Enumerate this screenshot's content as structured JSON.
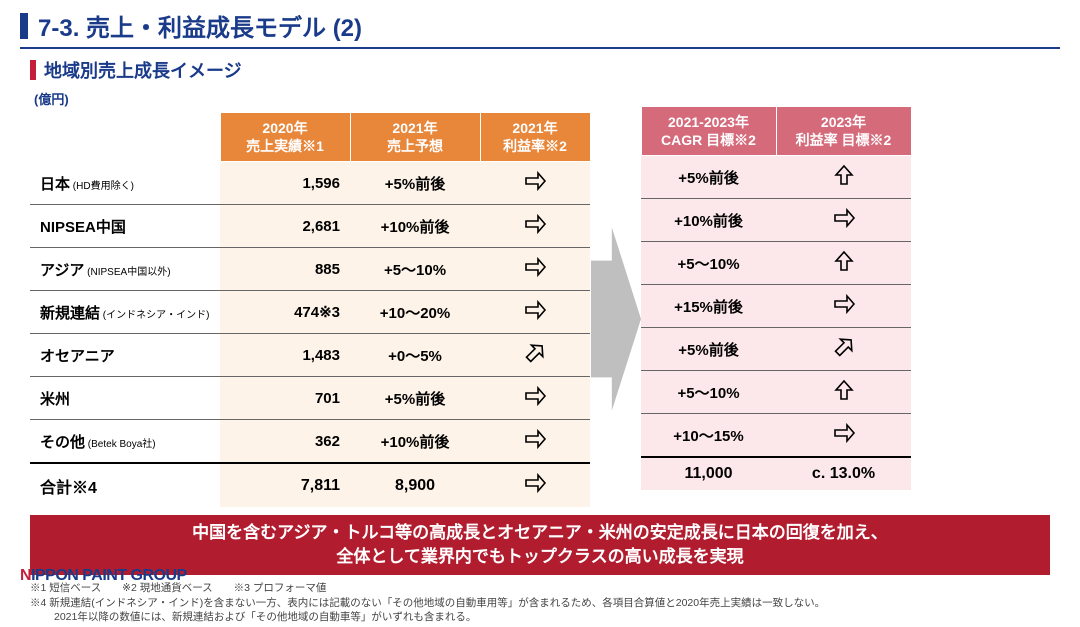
{
  "title": "7-3. 売上・利益成長モデル (2)",
  "subtitle": "地域別売上成長イメージ",
  "unit": "(億円)",
  "colors": {
    "navy": "#1a3a8a",
    "red": "#c41e3a",
    "orange_header": "#e8863a",
    "orange_cell": "#fdf3e8",
    "pink_header": "#d46a7a",
    "pink_cell": "#fce8ea",
    "banner": "#b11d2f",
    "arrow_gray": "#999999"
  },
  "headers_left": {
    "c1_l1": "2020年",
    "c1_l2": "売上実績※1",
    "c2_l1": "2021年",
    "c2_l2": "売上予想",
    "c3_l1": "2021年",
    "c3_l2": "利益率※2"
  },
  "headers_right": {
    "c1_l1": "2021-2023年",
    "c1_l2": "CAGR 目標※2",
    "c2_l1": "2023年",
    "c2_l2": "利益率 目標※2"
  },
  "rows": [
    {
      "label": "日本",
      "sub": "(HD費用除く)",
      "v2020": "1,596",
      "v2021f": "+5%前後",
      "arrow1": "flat",
      "cagr": "+5%前後",
      "arrow2": "up"
    },
    {
      "label": "NIPSEA中国",
      "sub": "",
      "v2020": "2,681",
      "v2021f": "+10%前後",
      "arrow1": "flat",
      "cagr": "+10%前後",
      "arrow2": "flat"
    },
    {
      "label": "アジア",
      "sub": "(NIPSEA中国以外)",
      "v2020": "885",
      "v2021f": "+5～10%",
      "arrow1": "flat",
      "cagr": "+5～10%",
      "arrow2": "up"
    },
    {
      "label": "新規連結",
      "sub": "(インドネシア・インド)",
      "v2020": "474※3",
      "v2021f": "+10～20%",
      "arrow1": "flat",
      "cagr": "+15%前後",
      "arrow2": "flat"
    },
    {
      "label": "オセアニア",
      "sub": "",
      "v2020": "1,483",
      "v2021f": "+0～5%",
      "arrow1": "upright",
      "cagr": "+5%前後",
      "arrow2": "upright"
    },
    {
      "label": "米州",
      "sub": "",
      "v2020": "701",
      "v2021f": "+5%前後",
      "arrow1": "flat",
      "cagr": "+5～10%",
      "arrow2": "up"
    },
    {
      "label": "その他",
      "sub": "(Betek Boya社)",
      "v2020": "362",
      "v2021f": "+10%前後",
      "arrow1": "flat",
      "cagr": "+10～15%",
      "arrow2": "flat"
    }
  ],
  "total": {
    "label": "合計※4",
    "v2020": "7,811",
    "v2021f": "8,900",
    "arrow1": "flat",
    "cagr": "11,000",
    "margin2023": "c. 13.0%"
  },
  "banner_l1": "中国を含むアジア・トルコ等の高成長とオセアニア・米州の安定成長に日本の回復を加え、",
  "banner_l2": "全体として業界内でもトップクラスの高い成長を実現",
  "footnotes": {
    "f1": "※1 短信ベース",
    "f2": "※2 現地通貨ベース",
    "f3": "※3 プロフォーマ値",
    "f4": "※4 新規連結(インドネシア・インド)を含まない一方、表内には記載のない「その他地域の自動車用等」が含まれるため、各項目合算値と2020年売上実績は一致しない。",
    "f5": "2021年以降の数値には、新規連結および「その他地域の自動車等」がいずれも含まれる。"
  },
  "logo": {
    "n": "N",
    "rest": "IPPON PAINT GROUP"
  }
}
